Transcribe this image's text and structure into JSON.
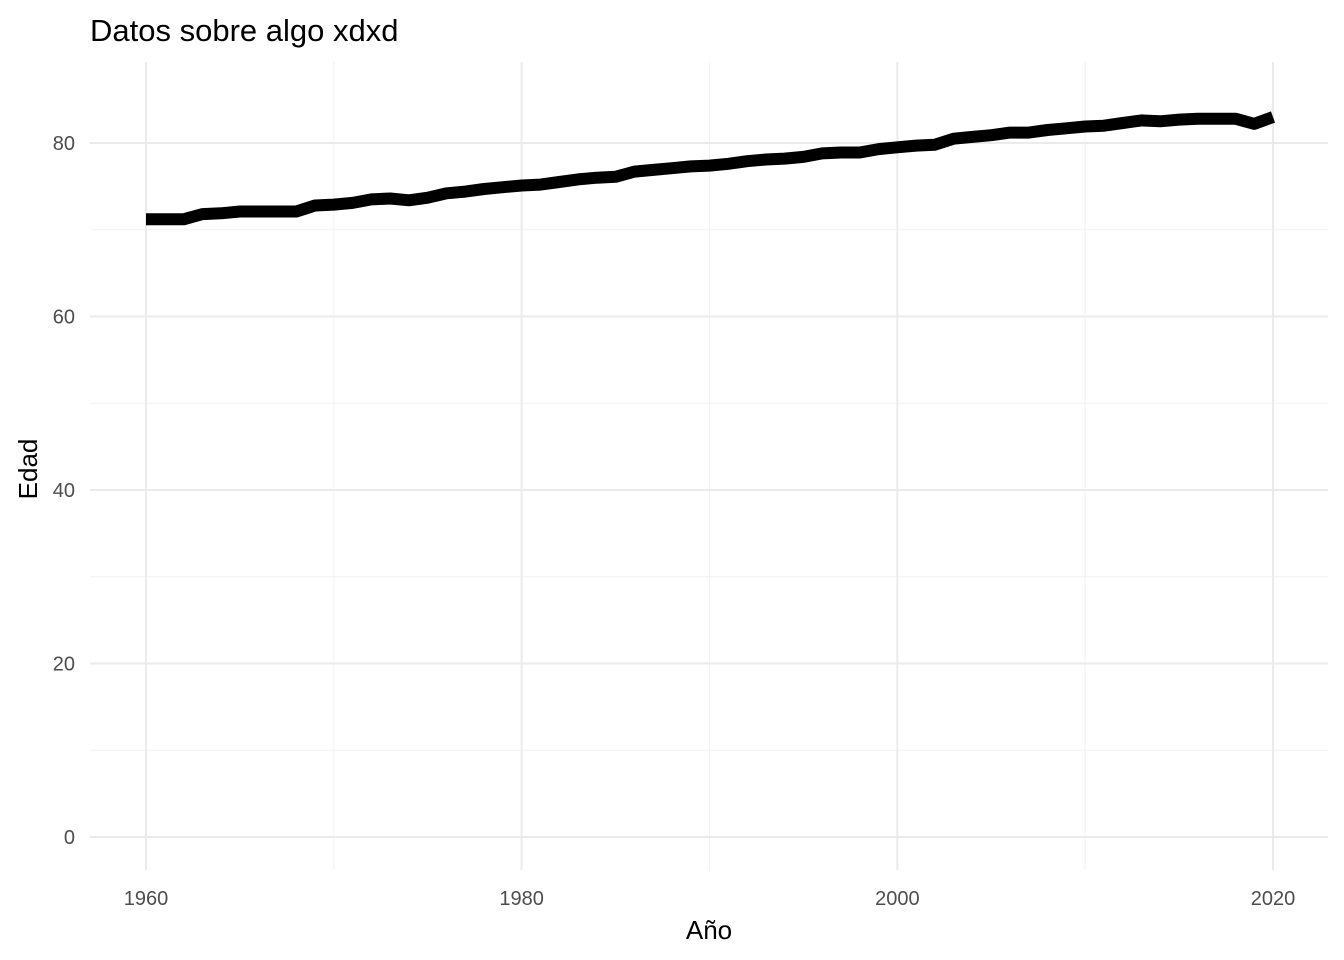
{
  "chart_data": {
    "type": "line",
    "title": "Datos sobre algo xdxd",
    "xlabel": "Año",
    "ylabel": "Edad",
    "xlim": [
      1960,
      2020
    ],
    "ylim": [
      0,
      83
    ],
    "x_ticks": [
      1960,
      1980,
      2000,
      2020
    ],
    "y_ticks": [
      0,
      20,
      40,
      60,
      80
    ],
    "x_minor_ticks": [
      1970,
      1990,
      2010
    ],
    "y_minor_ticks": [
      10,
      30,
      50,
      70
    ],
    "grid": true,
    "legend": "none",
    "line_color": "#000000",
    "series": [
      {
        "x": [
          1960,
          1961,
          1962,
          1963,
          1964,
          1965,
          1966,
          1967,
          1968,
          1969,
          1970,
          1971,
          1972,
          1973,
          1974,
          1975,
          1976,
          1977,
          1978,
          1979,
          1980,
          1981,
          1982,
          1983,
          1984,
          1985,
          1986,
          1987,
          1988,
          1989,
          1990,
          1991,
          1992,
          1993,
          1994,
          1995,
          1996,
          1997,
          1998,
          1999,
          2000,
          2001,
          2002,
          2003,
          2004,
          2005,
          2006,
          2007,
          2008,
          2009,
          2010,
          2011,
          2012,
          2013,
          2014,
          2015,
          2016,
          2017,
          2018,
          2019,
          2020
        ],
        "values": [
          71.2,
          71.2,
          71.2,
          71.8,
          71.9,
          72.1,
          72.1,
          72.1,
          72.1,
          72.8,
          72.9,
          73.1,
          73.5,
          73.6,
          73.4,
          73.7,
          74.2,
          74.4,
          74.7,
          74.9,
          75.1,
          75.2,
          75.5,
          75.8,
          76.0,
          76.1,
          76.7,
          76.9,
          77.1,
          77.3,
          77.4,
          77.6,
          77.9,
          78.1,
          78.2,
          78.4,
          78.8,
          78.9,
          78.9,
          79.3,
          79.5,
          79.7,
          79.8,
          80.5,
          80.7,
          80.9,
          81.2,
          81.2,
          81.5,
          81.7,
          81.9,
          82.0,
          82.3,
          82.6,
          82.5,
          82.7,
          82.8,
          82.8,
          82.8,
          82.2,
          83.0
        ]
      }
    ]
  }
}
